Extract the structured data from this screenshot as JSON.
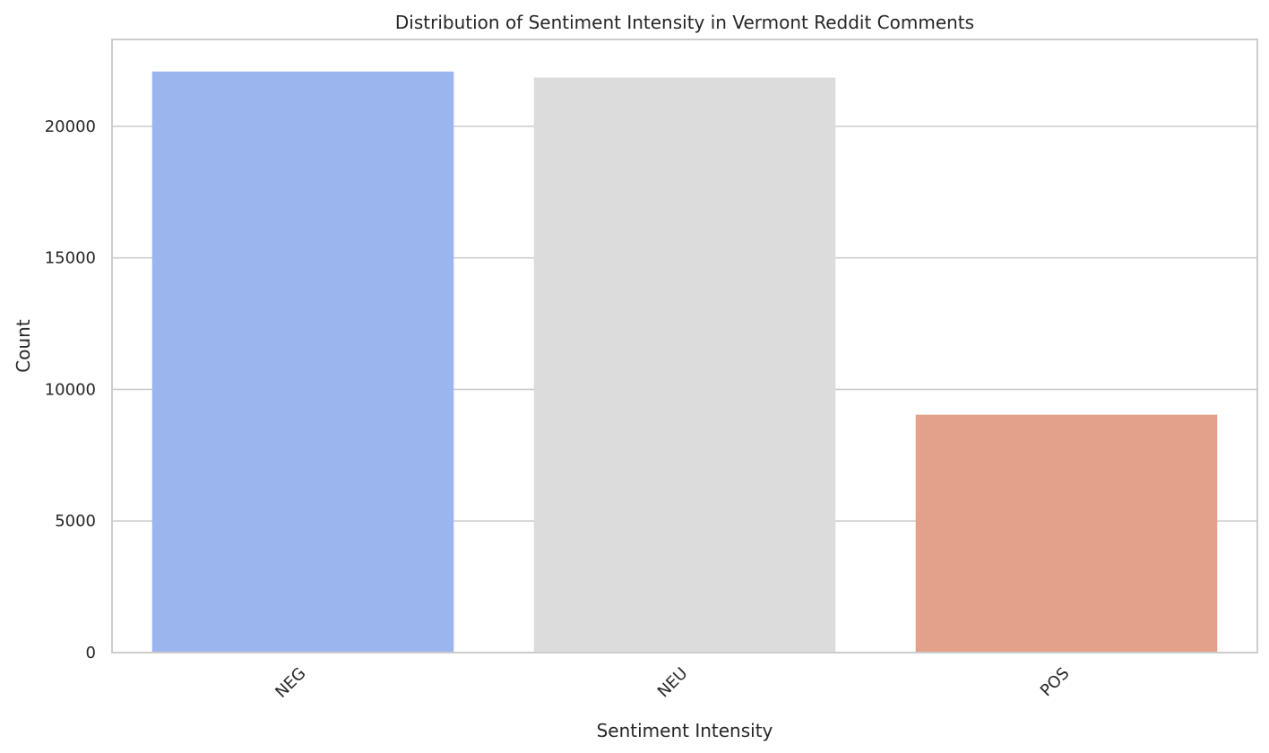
{
  "chart_data": {
    "type": "bar",
    "title": "Distribution of Sentiment Intensity in Vermont Reddit Comments",
    "xlabel": "Sentiment Intensity",
    "ylabel": "Count",
    "categories": [
      "NEG",
      "NEU",
      "POS"
    ],
    "values": [
      22080,
      21850,
      9040
    ],
    "colors": [
      "#9bb5ef",
      "#dcdcdc",
      "#e4a18a"
    ],
    "ylim": [
      0,
      23300
    ],
    "yticks": [
      0,
      5000,
      10000,
      15000,
      20000
    ],
    "grid": "y",
    "xtick_rotation": "45"
  }
}
